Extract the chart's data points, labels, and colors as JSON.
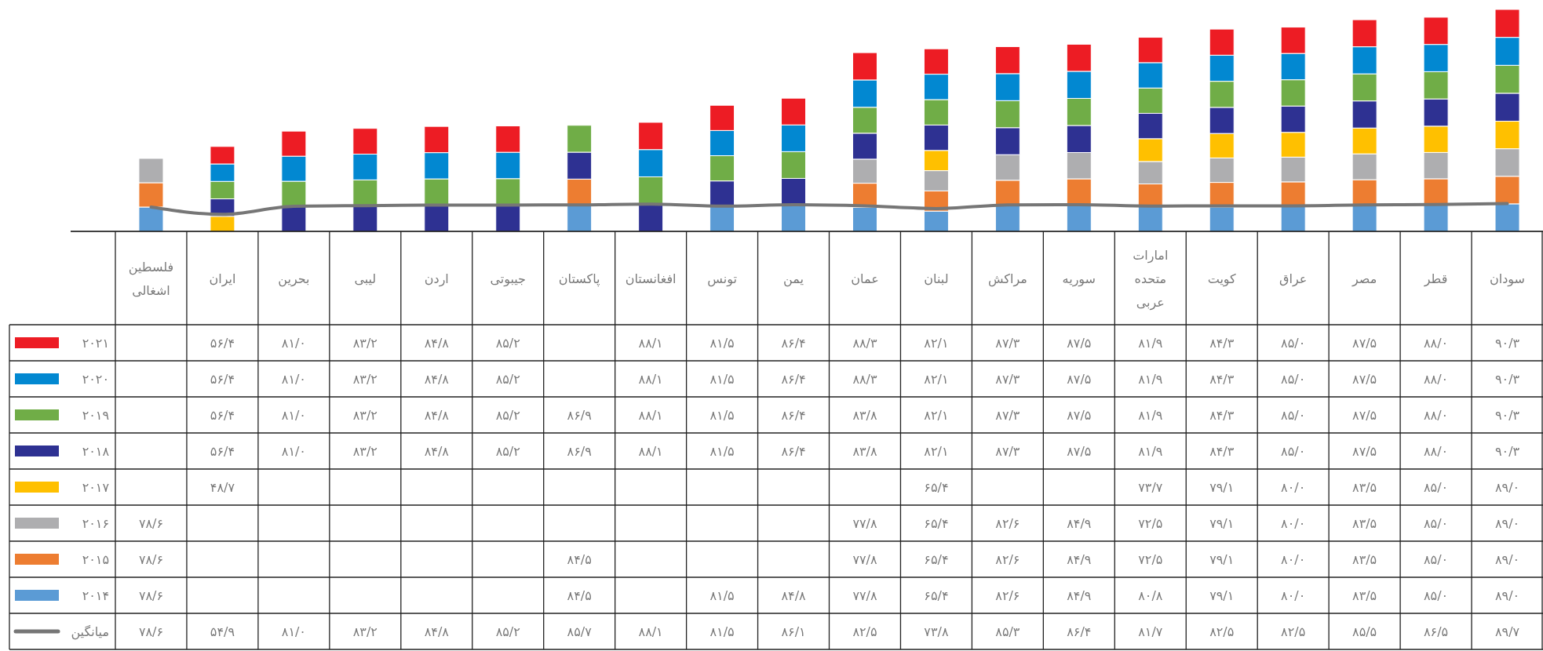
{
  "chart_data": {
    "type": "bar",
    "stacked": true,
    "legend": "bottom left",
    "tick_labels": "x",
    "categories": [
      "فلسطین اشغالی",
      "ایران",
      "بحرین",
      "لیبی",
      "اردن",
      "جیبوتی",
      "پاکستان",
      "افغانستان",
      "تونس",
      "یمن",
      "عمان",
      "لبنان",
      "مراکش",
      "سوریه",
      "امارات متحده عربی",
      "کویت",
      "عراق",
      "مصر",
      "قطر",
      "سودان"
    ],
    "series": [
      {
        "name": "۲۰۱۴",
        "color": "#5b9bd5",
        "values": [
          78.6,
          null,
          null,
          null,
          null,
          null,
          84.5,
          null,
          81.5,
          84.8,
          77.8,
          65.4,
          82.6,
          84.9,
          80.8,
          79.1,
          80.0,
          83.5,
          85.0,
          89.0
        ],
        "value_labels": [
          "۷۸/۶",
          null,
          null,
          null,
          null,
          null,
          "۸۴/۵",
          null,
          "۸۱/۵",
          "۸۴/۸",
          "۷۷/۸",
          "۶۵/۴",
          "۸۲/۶",
          "۸۴/۹",
          "۸۰/۸",
          "۷۹/۱",
          "۸۰/۰",
          "۸۳/۵",
          "۸۵/۰",
          "۸۹/۰"
        ]
      },
      {
        "name": "۲۰۱۵",
        "color": "#ed7d31",
        "values": [
          78.6,
          null,
          null,
          null,
          null,
          null,
          84.5,
          null,
          null,
          null,
          77.8,
          65.4,
          82.6,
          84.9,
          72.5,
          79.1,
          80.0,
          83.5,
          85.0,
          89.0
        ],
        "value_labels": [
          "۷۸/۶",
          null,
          null,
          null,
          null,
          null,
          "۸۴/۵",
          null,
          null,
          null,
          "۷۷/۸",
          "۶۵/۴",
          "۸۲/۶",
          "۸۴/۹",
          "۷۲/۵",
          "۷۹/۱",
          "۸۰/۰",
          "۸۳/۵",
          "۸۵/۰",
          "۸۹/۰"
        ]
      },
      {
        "name": "۲۰۱۶",
        "color": "#aeaeb0",
        "values": [
          78.6,
          null,
          null,
          null,
          null,
          null,
          null,
          null,
          null,
          null,
          77.8,
          65.4,
          82.6,
          84.9,
          72.5,
          79.1,
          80.0,
          83.5,
          85.0,
          89.0
        ],
        "value_labels": [
          "۷۸/۶",
          null,
          null,
          null,
          null,
          null,
          null,
          null,
          null,
          null,
          "۷۷/۸",
          "۶۵/۴",
          "۸۲/۶",
          "۸۴/۹",
          "۷۲/۵",
          "۷۹/۱",
          "۸۰/۰",
          "۸۳/۵",
          "۸۵/۰",
          "۸۹/۰"
        ]
      },
      {
        "name": "۲۰۱۷",
        "color": "#ffc000",
        "values": [
          null,
          48.7,
          null,
          null,
          null,
          null,
          null,
          null,
          null,
          null,
          null,
          65.4,
          null,
          null,
          73.7,
          79.1,
          80.0,
          83.5,
          85.0,
          89.0
        ],
        "value_labels": [
          null,
          "۴۸/۷",
          null,
          null,
          null,
          null,
          null,
          null,
          null,
          null,
          null,
          "۶۵/۴",
          null,
          null,
          "۷۳/۷",
          "۷۹/۱",
          "۸۰/۰",
          "۸۳/۵",
          "۸۵/۰",
          "۸۹/۰"
        ]
      },
      {
        "name": "۲۰۱۸",
        "color": "#2e3192",
        "values": [
          null,
          56.4,
          81.0,
          83.2,
          84.8,
          85.2,
          86.9,
          88.1,
          81.5,
          86.4,
          83.8,
          82.1,
          87.3,
          87.5,
          81.9,
          84.3,
          85.0,
          87.5,
          88.0,
          90.3
        ],
        "value_labels": [
          null,
          "۵۶/۴",
          "۸۱/۰",
          "۸۳/۲",
          "۸۴/۸",
          "۸۵/۲",
          "۸۶/۹",
          "۸۸/۱",
          "۸۱/۵",
          "۸۶/۴",
          "۸۳/۸",
          "۸۲/۱",
          "۸۷/۳",
          "۸۷/۵",
          "۸۱/۹",
          "۸۴/۳",
          "۸۵/۰",
          "۸۷/۵",
          "۸۸/۰",
          "۹۰/۳"
        ]
      },
      {
        "name": "۲۰۱۹",
        "color": "#70ad47",
        "values": [
          null,
          56.4,
          81.0,
          83.2,
          84.8,
          85.2,
          86.9,
          88.1,
          81.5,
          86.4,
          83.8,
          82.1,
          87.3,
          87.5,
          81.9,
          84.3,
          85.0,
          87.5,
          88.0,
          90.3
        ],
        "value_labels": [
          null,
          "۵۶/۴",
          "۸۱/۰",
          "۸۳/۲",
          "۸۴/۸",
          "۸۵/۲",
          "۸۶/۹",
          "۸۸/۱",
          "۸۱/۵",
          "۸۶/۴",
          "۸۳/۸",
          "۸۲/۱",
          "۸۷/۳",
          "۸۷/۵",
          "۸۱/۹",
          "۸۴/۳",
          "۸۵/۰",
          "۸۷/۵",
          "۸۸/۰",
          "۹۰/۳"
        ]
      },
      {
        "name": "۲۰۲۰",
        "color": "#0288d1",
        "values": [
          null,
          56.4,
          81.0,
          83.2,
          84.8,
          85.2,
          null,
          88.1,
          81.5,
          86.4,
          88.3,
          82.1,
          87.3,
          87.5,
          81.9,
          84.3,
          85.0,
          87.5,
          88.0,
          90.3
        ],
        "value_labels": [
          null,
          "۵۶/۴",
          "۸۱/۰",
          "۸۳/۲",
          "۸۴/۸",
          "۸۵/۲",
          null,
          "۸۸/۱",
          "۸۱/۵",
          "۸۶/۴",
          "۸۸/۳",
          "۸۲/۱",
          "۸۷/۳",
          "۸۷/۵",
          "۸۱/۹",
          "۸۴/۳",
          "۸۵/۰",
          "۸۷/۵",
          "۸۸/۰",
          "۹۰/۳"
        ]
      },
      {
        "name": "۲۰۲۱",
        "color": "#ed1c24",
        "values": [
          null,
          56.4,
          81.0,
          83.2,
          84.8,
          85.2,
          null,
          88.1,
          81.5,
          86.4,
          88.3,
          82.1,
          87.3,
          87.5,
          81.9,
          84.3,
          85.0,
          87.5,
          88.0,
          90.3
        ],
        "value_labels": [
          null,
          "۵۶/۴",
          "۸۱/۰",
          "۸۳/۲",
          "۸۴/۸",
          "۸۵/۲",
          null,
          "۸۸/۱",
          "۸۱/۵",
          "۸۶/۴",
          "۸۸/۳",
          "۸۲/۱",
          "۸۷/۳",
          "۸۷/۵",
          "۸۱/۹",
          "۸۴/۳",
          "۸۵/۰",
          "۸۷/۵",
          "۸۸/۰",
          "۹۰/۳"
        ]
      },
      {
        "name": "میانگین",
        "type": "line",
        "color": "#767676",
        "values": [
          78.6,
          54.9,
          81.0,
          83.2,
          84.8,
          85.2,
          85.7,
          88.1,
          81.5,
          86.1,
          82.5,
          73.8,
          85.3,
          86.4,
          81.7,
          82.5,
          82.5,
          85.5,
          86.5,
          89.7
        ],
        "value_labels": [
          "۷۸/۶",
          "۵۴/۹",
          "۸۱/۰",
          "۸۳/۲",
          "۸۴/۸",
          "۸۵/۲",
          "۸۵/۷",
          "۸۸/۱",
          "۸۱/۵",
          "۸۶/۱",
          "۸۲/۵",
          "۷۳/۸",
          "۸۵/۳",
          "۸۶/۴",
          "۸۱/۷",
          "۸۲/۵",
          "۸۲/۵",
          "۸۵/۵",
          "۸۶/۵",
          "۸۹/۷"
        ]
      }
    ]
  }
}
